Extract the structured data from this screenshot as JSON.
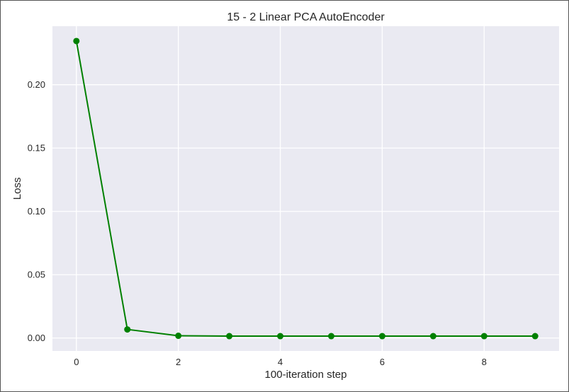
{
  "chart_data": {
    "type": "line",
    "title": "15 - 2 Linear PCA AutoEncoder",
    "xlabel": "100-iteration step",
    "ylabel": "Loss",
    "x": [
      0,
      1,
      2,
      3,
      4,
      5,
      6,
      7,
      8,
      9
    ],
    "series": [
      {
        "values": [
          0.2345,
          0.0068,
          0.0018,
          0.0015,
          0.0015,
          0.0015,
          0.0015,
          0.0015,
          0.0015,
          0.0015
        ],
        "color": "#008000",
        "marker": "circle"
      }
    ],
    "xlim": [
      -0.47,
      9.47
    ],
    "ylim": [
      -0.0102,
      0.2462
    ],
    "xticks": [
      0,
      2,
      4,
      6,
      8
    ],
    "xtick_labels": [
      "0",
      "2",
      "4",
      "6",
      "8"
    ],
    "yticks": [
      0.0,
      0.05,
      0.1,
      0.15,
      0.2
    ],
    "ytick_labels": [
      "0.00",
      "0.05",
      "0.10",
      "0.15",
      "0.20"
    ],
    "grid": true,
    "legend": "none",
    "background_color": "#eaeaf2",
    "grid_color": "#ffffff"
  }
}
